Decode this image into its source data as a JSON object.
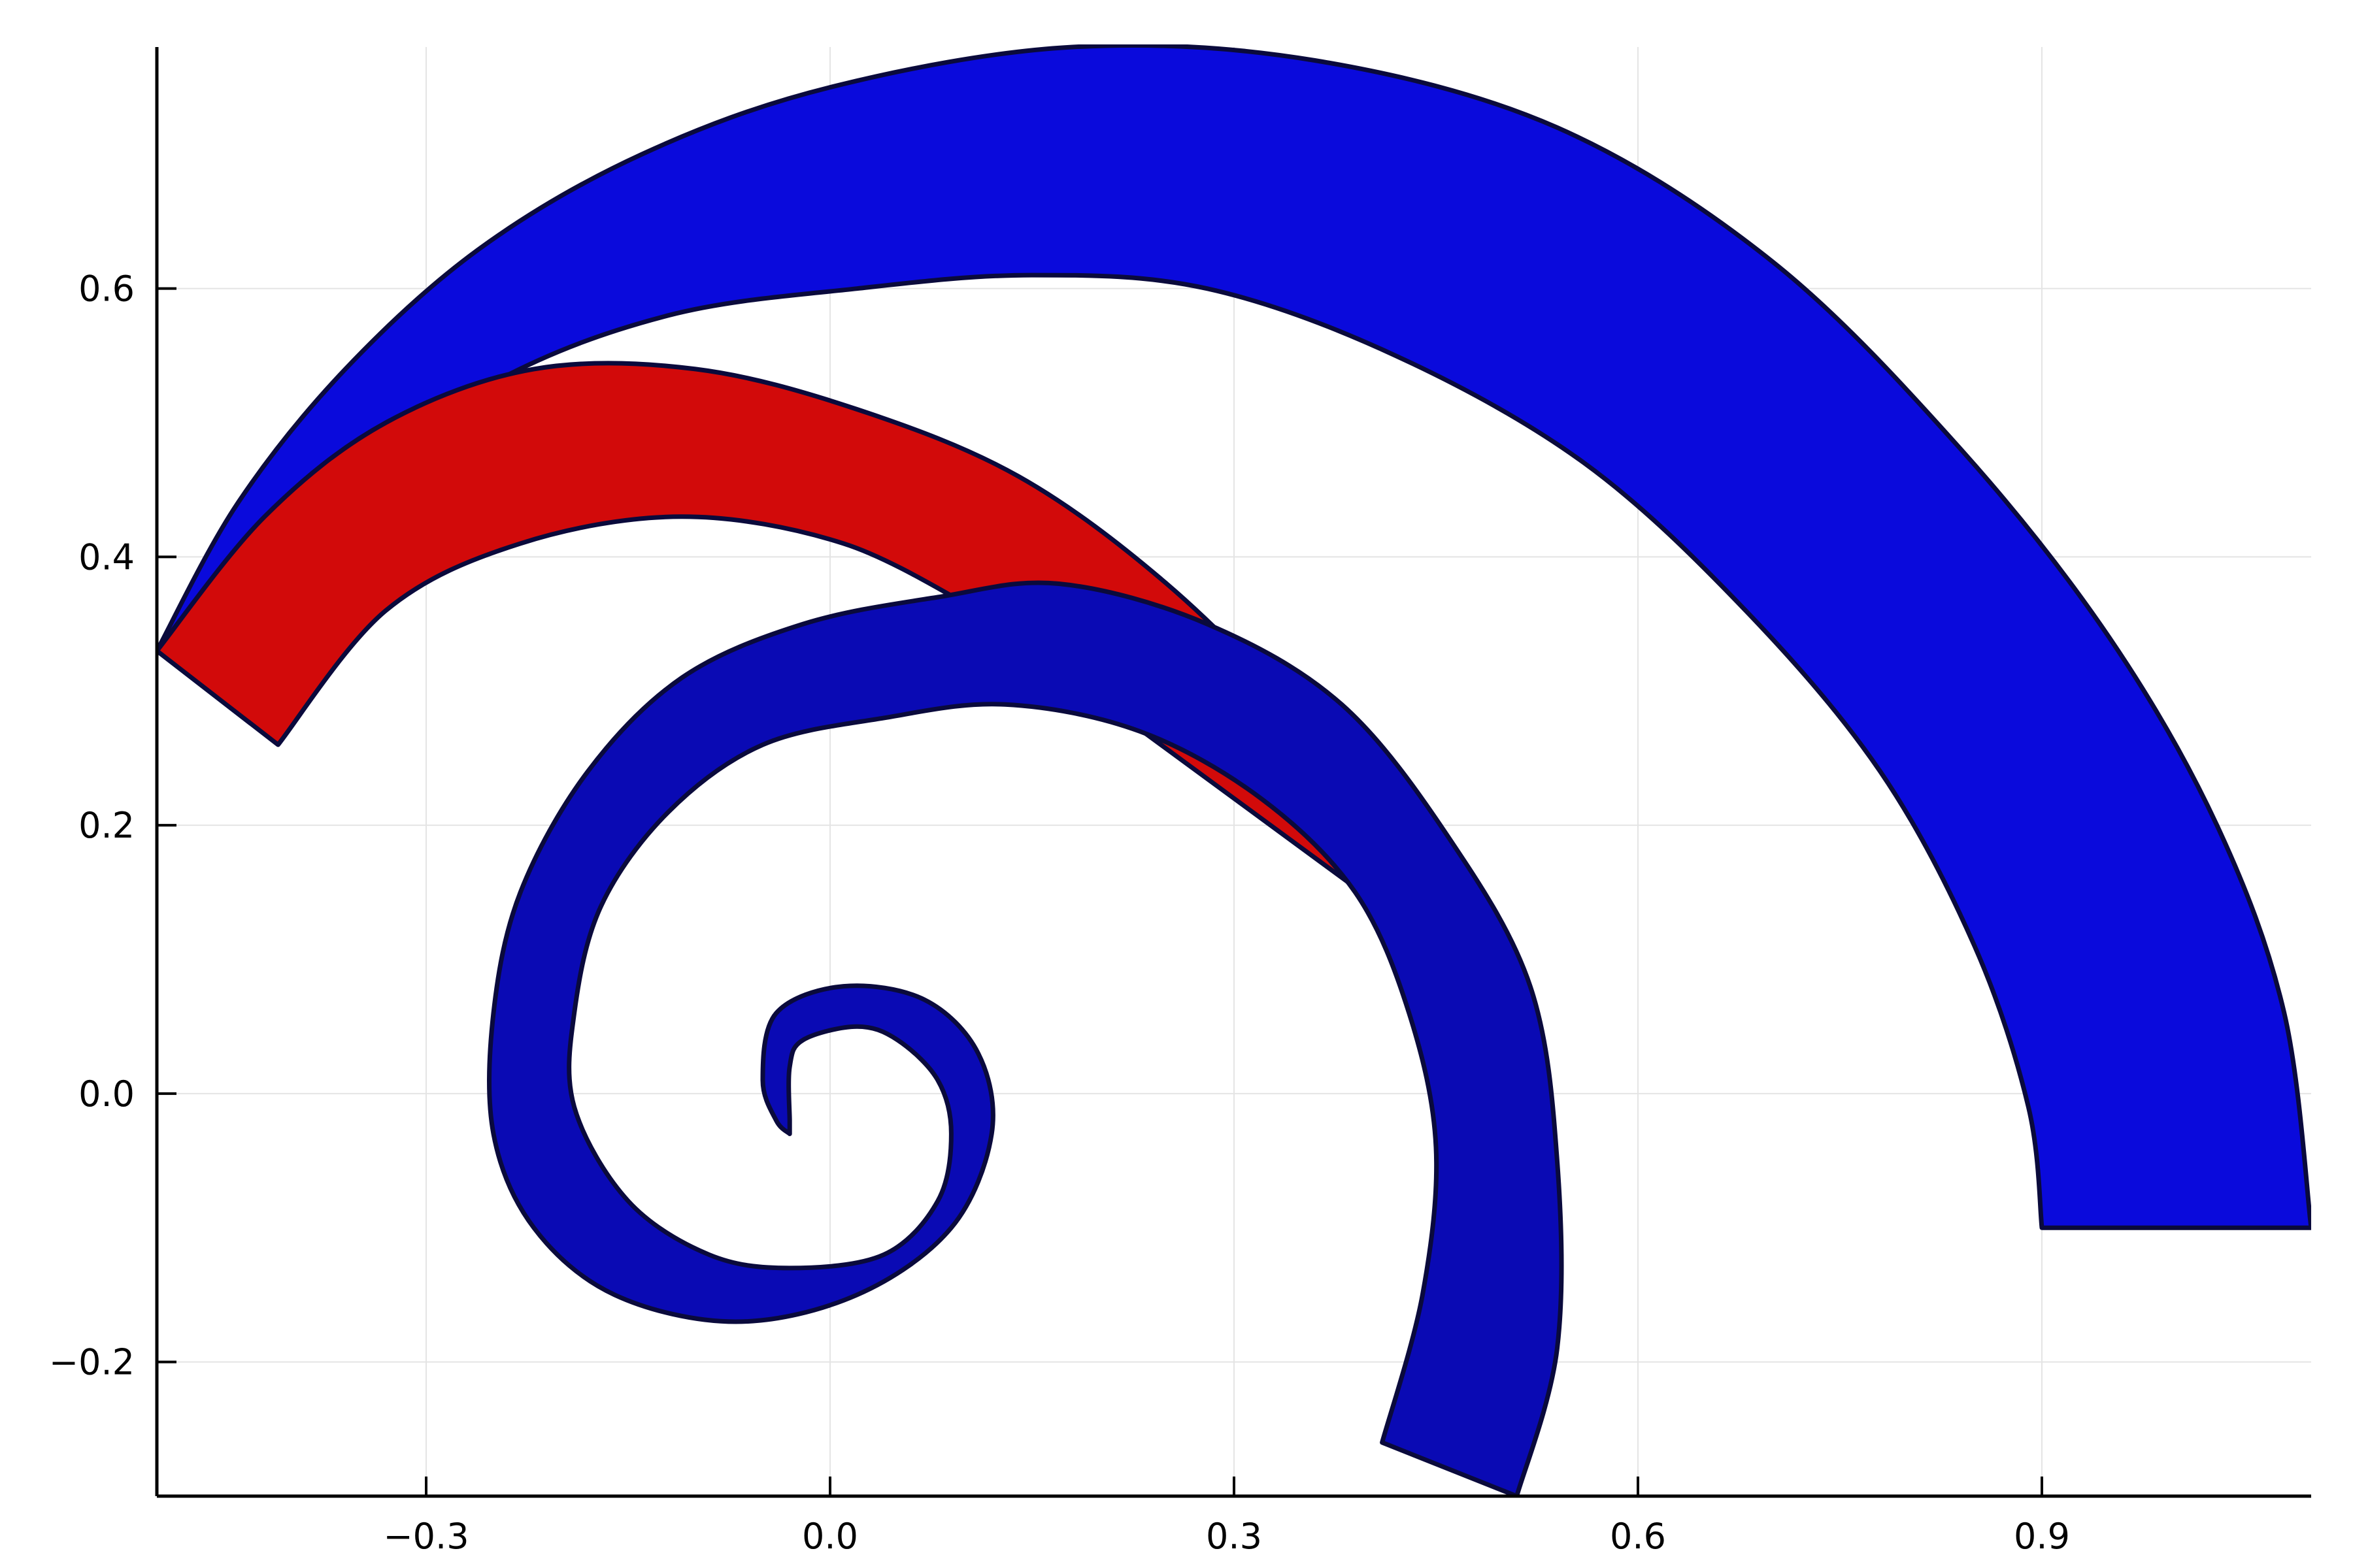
{
  "chart_data": {
    "type": "area",
    "title": "",
    "xlabel": "",
    "ylabel": "",
    "xlim": [
      -0.5,
      1.1
    ],
    "ylim": [
      -0.3,
      0.78
    ],
    "xticks": [
      -0.3,
      0.0,
      0.3,
      0.6,
      0.9
    ],
    "xtick_labels": [
      "−0.3",
      "0.0",
      "0.3",
      "0.6",
      "0.9"
    ],
    "yticks": [
      -0.2,
      0.0,
      0.2,
      0.4,
      0.6
    ],
    "ytick_labels": [
      "−0.2",
      "0.0",
      "0.2",
      "0.4",
      "0.6"
    ],
    "grid": true,
    "legend": "none",
    "series": [
      {
        "color": "#0a0adc",
        "outer": [
          [
            -0.5,
            0.33
          ],
          [
            -0.44,
            0.44
          ],
          [
            -0.36,
            0.54
          ],
          [
            -0.26,
            0.63
          ],
          [
            -0.14,
            0.7
          ],
          [
            0.0,
            0.75
          ],
          [
            0.18,
            0.78
          ],
          [
            0.36,
            0.77
          ],
          [
            0.54,
            0.72
          ],
          [
            0.7,
            0.62
          ],
          [
            0.84,
            0.48
          ],
          [
            0.95,
            0.34
          ],
          [
            1.03,
            0.2
          ],
          [
            1.08,
            0.06
          ],
          [
            1.1,
            -0.1
          ]
        ],
        "inner": [
          [
            -0.5,
            0.33
          ],
          [
            -0.38,
            0.44
          ],
          [
            -0.25,
            0.53
          ],
          [
            -0.12,
            0.58
          ],
          [
            0.02,
            0.6
          ],
          [
            0.15,
            0.61
          ],
          [
            0.28,
            0.6
          ],
          [
            0.42,
            0.55
          ],
          [
            0.56,
            0.47
          ],
          [
            0.68,
            0.36
          ],
          [
            0.78,
            0.24
          ],
          [
            0.85,
            0.11
          ],
          [
            0.89,
            -0.01
          ],
          [
            0.9,
            -0.1
          ]
        ]
      },
      {
        "color": "#d20a0a",
        "outer": [
          [
            -0.5,
            0.33
          ],
          [
            -0.42,
            0.43
          ],
          [
            -0.33,
            0.5
          ],
          [
            -0.22,
            0.54
          ],
          [
            -0.1,
            0.54
          ],
          [
            0.02,
            0.51
          ],
          [
            0.14,
            0.46
          ],
          [
            0.25,
            0.38
          ],
          [
            0.35,
            0.28
          ],
          [
            0.43,
            0.18
          ],
          [
            0.49,
            0.08
          ]
        ],
        "inner": [
          [
            -0.41,
            0.26
          ],
          [
            -0.33,
            0.36
          ],
          [
            -0.23,
            0.41
          ],
          [
            -0.11,
            0.43
          ],
          [
            0.01,
            0.41
          ],
          [
            0.11,
            0.36
          ]
        ]
      },
      {
        "color": "#0a0ab4",
        "outer": [
          [
            0.51,
            -0.3
          ],
          [
            0.54,
            -0.19
          ],
          [
            0.54,
            -0.05
          ],
          [
            0.52,
            0.08
          ],
          [
            0.46,
            0.19
          ],
          [
            0.38,
            0.29
          ],
          [
            0.28,
            0.35
          ],
          [
            0.17,
            0.38
          ],
          [
            0.08,
            0.37
          ],
          [
            -0.02,
            0.35
          ],
          [
            -0.11,
            0.31
          ],
          [
            -0.18,
            0.24
          ],
          [
            -0.23,
            0.15
          ],
          [
            -0.25,
            0.06
          ],
          [
            -0.25,
            -0.03
          ],
          [
            -0.22,
            -0.1
          ],
          [
            -0.16,
            -0.15
          ],
          [
            -0.07,
            -0.17
          ],
          [
            0.02,
            -0.15
          ],
          [
            0.09,
            -0.1
          ],
          [
            0.12,
            -0.03
          ],
          [
            0.11,
            0.03
          ],
          [
            0.07,
            0.07
          ],
          [
            0.01,
            0.08
          ],
          [
            -0.04,
            0.06
          ],
          [
            -0.05,
            0.01
          ],
          [
            -0.04,
            -0.02
          ],
          [
            -0.03,
            -0.03
          ]
        ],
        "inner": [
          [
            0.41,
            -0.26
          ],
          [
            0.44,
            -0.15
          ],
          [
            0.45,
            -0.04
          ],
          [
            0.43,
            0.06
          ],
          [
            0.39,
            0.15
          ],
          [
            0.32,
            0.22
          ],
          [
            0.23,
            0.27
          ],
          [
            0.13,
            0.29
          ],
          [
            0.04,
            0.28
          ],
          [
            -0.05,
            0.26
          ],
          [
            -0.12,
            0.21
          ],
          [
            -0.17,
            0.14
          ],
          [
            -0.19,
            0.06
          ],
          [
            -0.19,
            -0.01
          ],
          [
            -0.15,
            -0.08
          ],
          [
            -0.09,
            -0.12
          ],
          [
            -0.03,
            -0.13
          ],
          [
            0.04,
            -0.12
          ],
          [
            0.08,
            -0.08
          ],
          [
            0.09,
            -0.03
          ],
          [
            0.08,
            0.01
          ],
          [
            0.05,
            0.04
          ],
          [
            0.02,
            0.05
          ],
          [
            -0.02,
            0.04
          ],
          [
            -0.03,
            0.02
          ],
          [
            -0.03,
            -0.02
          ]
        ]
      }
    ]
  },
  "colors": {
    "background": "#ffffff",
    "grid": "#e4e4e4",
    "axis": "#000000",
    "band_edge": "#0a0a3c"
  }
}
